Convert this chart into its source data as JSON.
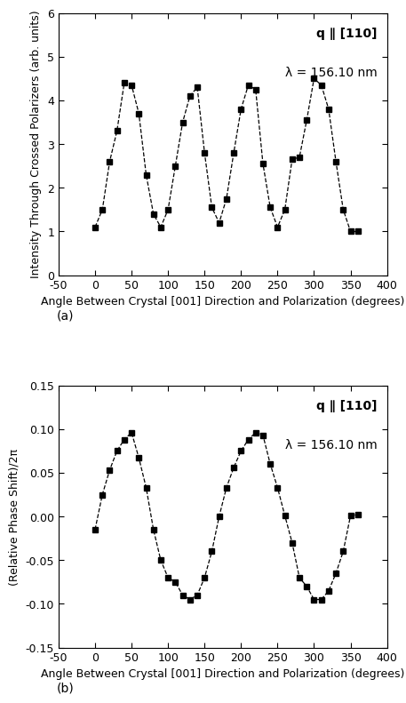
{
  "panel_a": {
    "x": [
      0,
      10,
      20,
      30,
      40,
      50,
      60,
      70,
      80,
      90,
      100,
      110,
      120,
      130,
      140,
      150,
      160,
      170,
      180,
      190,
      200,
      210,
      220,
      230,
      240,
      250,
      260,
      270,
      280,
      290,
      300,
      310,
      320,
      330,
      340,
      350,
      360
    ],
    "y": [
      1.1,
      1.5,
      2.6,
      3.3,
      4.4,
      4.35,
      3.7,
      2.3,
      1.4,
      1.1,
      1.5,
      2.5,
      3.5,
      4.1,
      4.3,
      2.8,
      1.55,
      1.2,
      1.75,
      2.8,
      3.8,
      4.35,
      4.25,
      2.55,
      1.55,
      1.1,
      1.5,
      2.65,
      2.7,
      3.55,
      4.5,
      4.35,
      3.8,
      2.6,
      1.5,
      1.0,
      1.0
    ],
    "ylabel": "Intensity Through Crossed Polarizers (arb. units)",
    "xlim": [
      -50,
      400
    ],
    "ylim": [
      0,
      6
    ],
    "yticks": [
      0,
      1,
      2,
      3,
      4,
      5,
      6
    ],
    "xticks": [
      -50,
      0,
      50,
      100,
      150,
      200,
      250,
      300,
      350,
      400
    ],
    "xlabel": "Angle Between Crystal [001] Direction and Polarization (degrees)",
    "ann1_bold": "q",
    "ann1_normal": " ∥ [110]",
    "ann2": "λ = 156.10 nm",
    "label": "(a)"
  },
  "panel_b": {
    "x": [
      0,
      10,
      20,
      30,
      40,
      50,
      60,
      70,
      80,
      90,
      100,
      110,
      120,
      130,
      140,
      150,
      160,
      170,
      180,
      190,
      200,
      210,
      220,
      230,
      240,
      250,
      260,
      270,
      280,
      290,
      300,
      310,
      320,
      330,
      340,
      350,
      360
    ],
    "y": [
      -0.015,
      0.025,
      0.053,
      0.075,
      0.088,
      0.096,
      0.067,
      0.033,
      -0.015,
      -0.05,
      -0.07,
      -0.075,
      -0.09,
      -0.095,
      -0.09,
      -0.07,
      -0.04,
      0.0,
      0.033,
      0.056,
      0.075,
      0.088,
      0.096,
      0.093,
      0.06,
      0.033,
      0.001,
      -0.03,
      -0.07,
      -0.08,
      -0.095,
      -0.095,
      -0.085,
      -0.065,
      -0.04,
      0.001,
      0.002
    ],
    "ylabel": "(Relative Phase Shift)/2π",
    "xlim": [
      -50,
      400
    ],
    "ylim": [
      -0.15,
      0.15
    ],
    "yticks": [
      -0.15,
      -0.1,
      -0.05,
      0.0,
      0.05,
      0.1,
      0.15
    ],
    "xticks": [
      -50,
      0,
      50,
      100,
      150,
      200,
      250,
      300,
      350,
      400
    ],
    "xlabel": "Angle Between Crystal [001] Direction and Polarization (degrees)",
    "ann1_bold": "q",
    "ann1_normal": " ∥ [110]",
    "ann2": "λ = 156.10 nm",
    "label": "(b)"
  },
  "line_color": "#000000",
  "marker": "s",
  "marker_size": 4.5,
  "line_style": "--",
  "line_width": 0.9,
  "background_color": "#ffffff",
  "tick_fontsize": 9,
  "label_fontsize": 9,
  "annotation_fontsize": 10
}
